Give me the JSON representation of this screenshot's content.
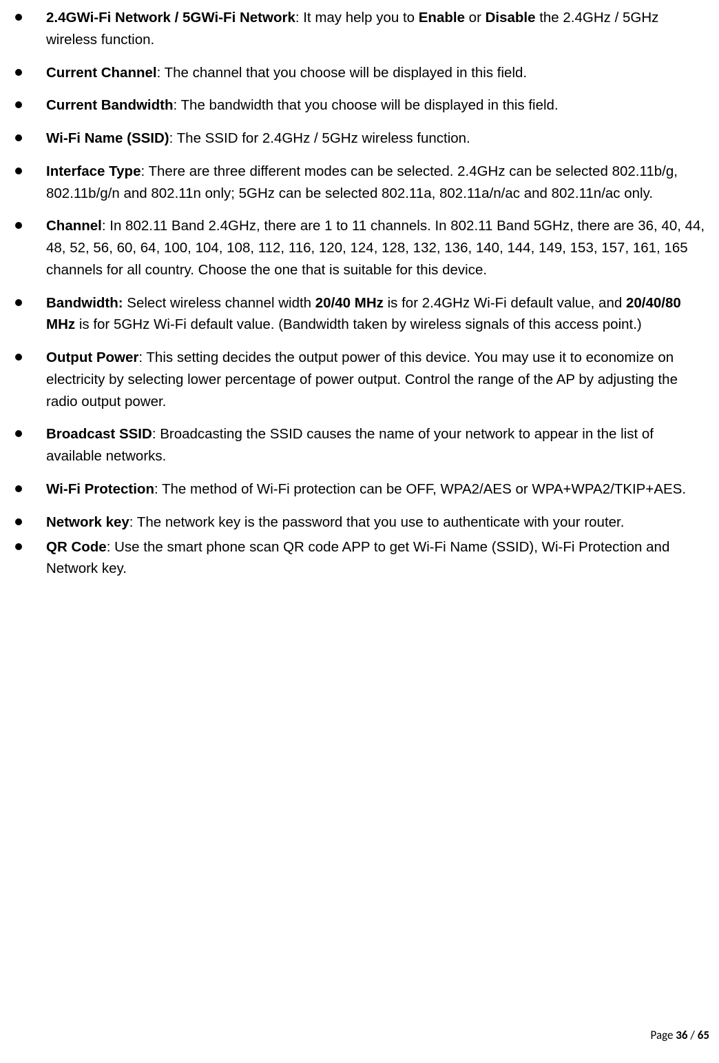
{
  "items": [
    {
      "term": "2.4GWi-Fi Network / 5GWi-Fi Network",
      "pre": ": It may help you to ",
      "mid1_bold": "Enable",
      "mid_text": " or ",
      "mid2_bold": "Disable",
      "post": " the 2.4GHz / 5GHz wireless function."
    },
    {
      "term": "Current Channel",
      "post": ": The channel that you choose will be displayed in this field."
    },
    {
      "term": "Current Bandwidth",
      "post": ": The bandwidth that you choose will be displayed in this field."
    },
    {
      "term": "Wi-Fi Name (SSID)",
      "post": ": The SSID for 2.4GHz / 5GHz wireless function."
    },
    {
      "term": "Interface Type",
      "post": ": There are three different modes can be selected. 2.4GHz can be selected 802.11b/g, 802.11b/g/n and 802.11n only; 5GHz can be selected 802.11a, 802.11a/n/ac and 802.11n/ac only."
    },
    {
      "term": "Channel",
      "post": ": In 802.11 Band 2.4GHz, there are 1 to 11 channels. In 802.11 Band 5GHz, there are 36, 40, 44, 48, 52, 56, 60, 64, 100, 104, 108, 112, 116, 120, 124, 128, 132, 136, 140, 144, 149, 153, 157, 161, 165 channels for all country. Choose the one that is suitable for this device."
    },
    {
      "term": "Bandwidth:",
      "pre": " Select wireless channel width ",
      "mid1_bold": "20/40 MHz",
      "mid_text": " is for 2.4GHz Wi-Fi default value, and ",
      "mid2_bold": "20/40/80 MHz",
      "post": " is for 5GHz Wi-Fi default value. (Bandwidth taken by wireless signals of this access point.)"
    },
    {
      "term": "Output Power",
      "post": ": This setting decides the output power of this device. You may use it to economize on electricity by selecting lower percentage of power output. Control the range of the AP by adjusting the radio output power."
    },
    {
      "term": "Broadcast SSID",
      "post": ": Broadcasting the SSID causes the name of your network to appear in the list of available networks."
    },
    {
      "term": "Wi-Fi Protection",
      "post": ": The method of Wi-Fi protection can be OFF, WPA2/AES or WPA+WPA2/TKIP+AES."
    },
    {
      "term": "Network key",
      "post": ": The network key is the password that you use to authenticate with your router."
    },
    {
      "term": "QR Code",
      "post": ": Use the smart phone scan QR code APP to get Wi-Fi Name (SSID), Wi-Fi Protection and Network key."
    }
  ],
  "footer": {
    "label": "Page ",
    "current": "36",
    "sep": " / ",
    "total": "65"
  }
}
